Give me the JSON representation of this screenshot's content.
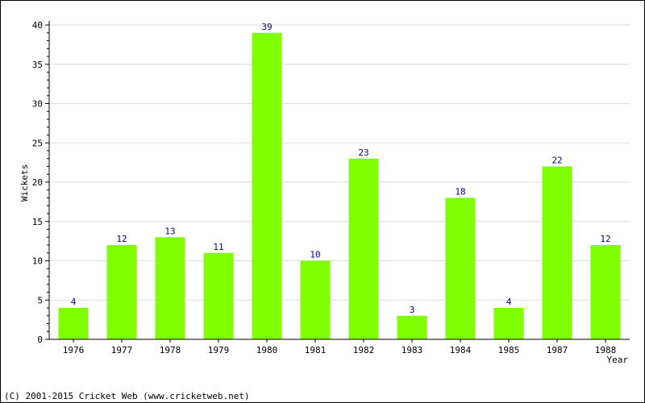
{
  "chart_data": {
    "type": "bar",
    "categories": [
      "1976",
      "1977",
      "1978",
      "1979",
      "1980",
      "1981",
      "1982",
      "1983",
      "1984",
      "1985",
      "1987",
      "1988"
    ],
    "values": [
      4,
      12,
      13,
      11,
      39,
      10,
      23,
      3,
      18,
      4,
      22,
      12
    ],
    "ylabel": "Wickets",
    "xlabel": "Year",
    "ylim": [
      0,
      40
    ],
    "yticks": [
      0,
      5,
      10,
      15,
      20,
      25,
      30,
      35,
      40
    ],
    "grid": true,
    "bar_color": "#80ff00",
    "label_color": "#000080",
    "grid_color": "#dddddd"
  },
  "footer": {
    "copyright": "(C) 2001-2015 Cricket Web (www.cricketweb.net)"
  }
}
